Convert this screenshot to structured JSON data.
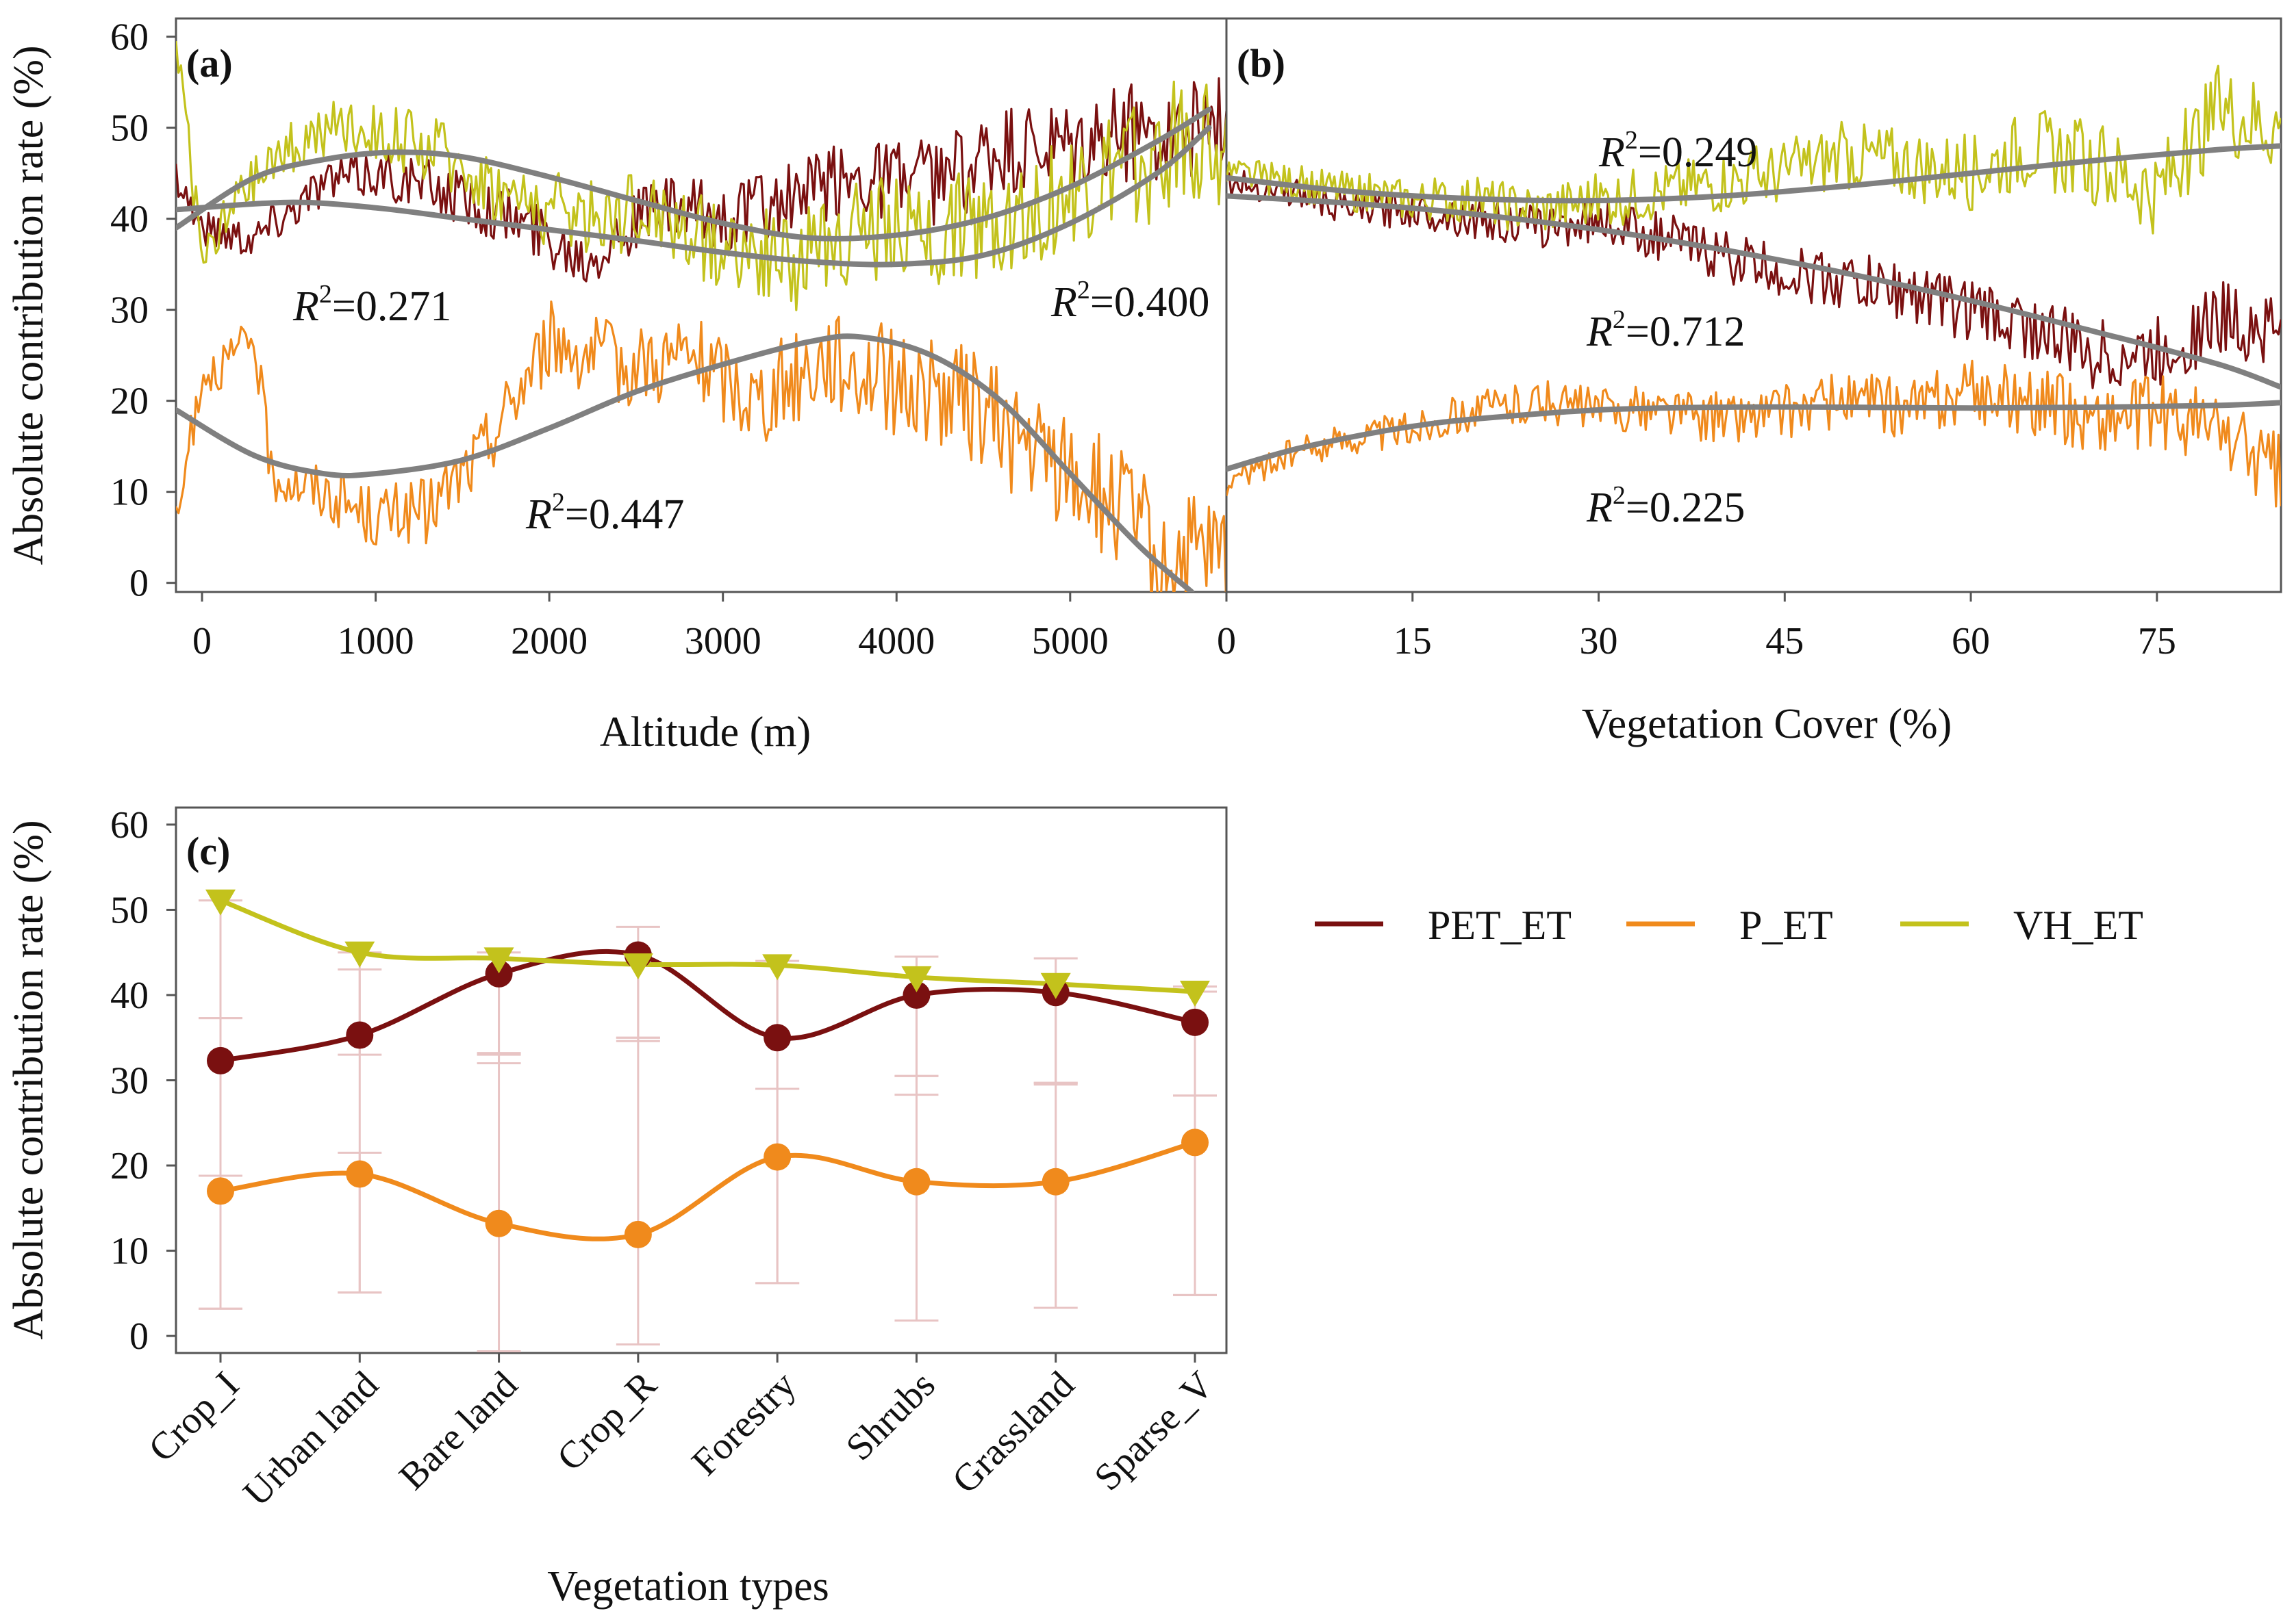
{
  "colors": {
    "PET_ET": "#7a1010",
    "P_ET": "#f08a1c",
    "VH_ET": "#c3c21c",
    "fit": "#808080",
    "errorbar": "#e8c4c4"
  },
  "legend": [
    {
      "key": "PET_ET",
      "label": "PET_ET"
    },
    {
      "key": "P_ET",
      "label": "P_ET"
    },
    {
      "key": "VH_ET",
      "label": "VH_ET"
    }
  ],
  "chart_data": [
    {
      "id": "a",
      "type": "line",
      "panel_label": "(a)",
      "xlabel": "Altitude (m)",
      "ylabel": "Absolute contribution rate (%)",
      "xlim": [
        -150,
        5900
      ],
      "ylim": [
        -1,
        62
      ],
      "xticks": [
        "0",
        "1000",
        "2000",
        "3000",
        "4000",
        "5000"
      ],
      "yticks": [
        "0",
        "10",
        "20",
        "30",
        "40",
        "50",
        "60"
      ],
      "series": [
        {
          "name": "PET_ET",
          "key": "PET_ET",
          "x": [
            -150,
            0,
            300,
            700,
            1000,
            1400,
            1800,
            2200,
            2600,
            3000,
            3400,
            3800,
            4200,
            4600,
            5000,
            5400,
            5750
          ],
          "values": [
            45,
            39,
            38,
            44,
            45,
            43,
            40,
            36,
            41,
            40,
            42,
            45,
            44,
            47,
            47,
            50,
            50
          ]
        },
        {
          "name": "P_ET",
          "key": "P_ET",
          "x": [
            -150,
            0,
            200,
            300,
            400,
            700,
            1000,
            1300,
            1600,
            2000,
            2400,
            2800,
            3200,
            3600,
            4000,
            4400,
            4800,
            5200,
            5500,
            5750
          ],
          "values": [
            6,
            23,
            25,
            27,
            12,
            10,
            7,
            8,
            14,
            27,
            24,
            25,
            20,
            25,
            22,
            20,
            14,
            10,
            3,
            2
          ]
        },
        {
          "name": "VH_ET",
          "key": "VH_ET",
          "x": [
            -150,
            0,
            200,
            500,
            800,
            1100,
            1400,
            1800,
            2200,
            2600,
            3000,
            3400,
            3800,
            4200,
            4600,
            5000,
            5300,
            5600,
            5750
          ],
          "values": [
            61,
            35,
            42,
            48,
            50,
            49,
            47,
            42,
            40,
            41,
            37,
            35,
            39,
            38,
            40,
            42,
            45,
            48,
            49
          ]
        }
      ],
      "fits": [
        {
          "name": "PET_ET fit",
          "key": "PET_ET",
          "r2": "0.400",
          "x": [
            -150,
            500,
            1000,
            1500,
            2000,
            2500,
            3000,
            3500,
            4000,
            4500,
            5000,
            5500,
            5800
          ],
          "values": [
            41,
            41.8,
            41.2,
            40,
            38.8,
            37.6,
            36.3,
            35.3,
            35,
            36,
            39.5,
            45,
            50
          ]
        },
        {
          "name": "P_ET fit",
          "key": "P_ET",
          "r2": "0.447",
          "x": [
            -150,
            300,
            700,
            1000,
            1500,
            2000,
            2500,
            3000,
            3500,
            3800,
            4200,
            4600,
            5000,
            5400,
            5700
          ],
          "values": [
            19,
            14,
            12,
            12,
            13.5,
            17,
            21,
            24,
            26.5,
            27,
            25,
            20,
            12,
            4,
            -1
          ]
        },
        {
          "name": "VH_ET fit",
          "key": "VH_ET",
          "r2": "0.271",
          "x": [
            -150,
            300,
            700,
            1100,
            1500,
            2000,
            2500,
            3000,
            3500,
            4000,
            4500,
            5000,
            5500,
            5800
          ],
          "values": [
            39,
            44.5,
            46.5,
            47.3,
            46.8,
            44.6,
            42,
            39.5,
            37.9,
            38.2,
            40,
            43.5,
            48.5,
            52
          ]
        }
      ],
      "r2_labels": [
        "0.271",
        "0.400",
        "0.447"
      ]
    },
    {
      "id": "b",
      "type": "line",
      "panel_label": "(b)",
      "xlabel": "Vegetation Cover (%)",
      "xlim": [
        0,
        85
      ],
      "ylim": [
        -1,
        62
      ],
      "xticks": [
        "0",
        "15",
        "30",
        "45",
        "60",
        "75"
      ],
      "series": [
        {
          "name": "PET_ET",
          "key": "PET_ET",
          "x": [
            0,
            5,
            10,
            15,
            20,
            25,
            30,
            35,
            40,
            45,
            50,
            55,
            60,
            65,
            70,
            75,
            80,
            85
          ],
          "values": [
            44,
            43,
            41,
            41,
            40,
            39,
            40,
            38,
            36,
            34,
            33,
            32,
            30,
            28,
            25,
            25,
            29,
            28
          ]
        },
        {
          "name": "P_ET",
          "key": "P_ET",
          "x": [
            0,
            5,
            10,
            15,
            20,
            25,
            30,
            35,
            40,
            45,
            50,
            55,
            60,
            65,
            70,
            75,
            80,
            85
          ],
          "values": [
            11,
            14,
            16,
            17,
            19,
            20,
            19,
            19,
            18,
            19,
            20,
            19,
            21,
            20,
            18,
            19,
            17,
            12
          ]
        },
        {
          "name": "VH_ET",
          "key": "VH_ET",
          "x": [
            0,
            5,
            10,
            15,
            20,
            25,
            30,
            35,
            40,
            45,
            50,
            55,
            60,
            65,
            70,
            75,
            80,
            85
          ],
          "values": [
            45,
            44,
            43,
            42,
            42,
            41,
            42,
            43,
            44,
            45,
            47,
            46,
            45,
            48,
            46,
            43,
            52,
            50
          ]
        }
      ],
      "fits": [
        {
          "name": "PET_ET fit",
          "key": "PET_ET",
          "r2": "0.712",
          "x": [
            0,
            10,
            20,
            30,
            40,
            50,
            60,
            70,
            80,
            85
          ],
          "values": [
            42.5,
            41.7,
            40.5,
            38.8,
            36.6,
            34,
            31,
            27.6,
            24,
            21.5
          ]
        },
        {
          "name": "P_ET fit",
          "key": "P_ET",
          "r2": "0.225",
          "x": [
            0,
            5,
            10,
            15,
            20,
            30,
            40,
            50,
            60,
            70,
            80,
            85
          ],
          "values": [
            12.5,
            14.5,
            16,
            17.2,
            18,
            19,
            19.3,
            19.3,
            19.2,
            19.3,
            19.5,
            19.8
          ]
        },
        {
          "name": "VH_ET fit",
          "key": "VH_ET",
          "r2": "0.249",
          "x": [
            0,
            10,
            20,
            30,
            40,
            50,
            60,
            70,
            80,
            85
          ],
          "values": [
            44.5,
            43,
            42.2,
            42,
            42.5,
            43.6,
            45,
            46.4,
            47.6,
            48
          ]
        }
      ],
      "r2_labels": [
        "0.249",
        "0.712",
        "0.225"
      ]
    },
    {
      "id": "c",
      "type": "line",
      "panel_label": "(c)",
      "xlabel": "Vegetation types",
      "ylabel": "Absolute contribution rate (%)",
      "ylim": [
        -2,
        62
      ],
      "yticks": [
        "0",
        "10",
        "20",
        "30",
        "40",
        "50",
        "60"
      ],
      "categories": [
        "Crop_I",
        "Urban land",
        "Bare land",
        "Crop_R",
        "Forestry",
        "Shrubs",
        "Grassland",
        "Sparse_V"
      ],
      "series": [
        {
          "name": "PET_ET",
          "key": "PET_ET",
          "marker": "circle",
          "values": [
            32.3,
            35.3,
            42.5,
            44.7,
            35,
            40,
            40.3,
            36.8
          ],
          "err_lo": [
            3.2,
            5.1,
            32,
            34.6,
            6.2,
            28.3,
            29.5,
            4.8
          ],
          "err_hi": [
            37.3,
            43,
            45,
            48,
            44,
            44.5,
            44.3,
            41
          ]
        },
        {
          "name": "P_ET",
          "key": "P_ET",
          "marker": "circle",
          "values": [
            17,
            19,
            13.2,
            11.9,
            21,
            18.1,
            18.1,
            22.7
          ],
          "err_lo": [
            3.2,
            5.1,
            -1.8,
            -1,
            6.2,
            1.8,
            3.3,
            4.8
          ],
          "err_hi": [
            18.8,
            21.5,
            33.2,
            35,
            29,
            30.5,
            29.7,
            28.2
          ]
        },
        {
          "name": "VH_ET",
          "key": "VH_ET",
          "marker": "triangle-down",
          "values": [
            51.1,
            45,
            44.3,
            43.6,
            43.5,
            42.1,
            41.3,
            40.4
          ],
          "err_lo": [
            37.3,
            33,
            33,
            35,
            29,
            30.5,
            29.7,
            28.2
          ],
          "err_hi": [
            51.1,
            45,
            44.3,
            43.6,
            43.5,
            42.1,
            41.3,
            40.4
          ]
        }
      ]
    }
  ]
}
